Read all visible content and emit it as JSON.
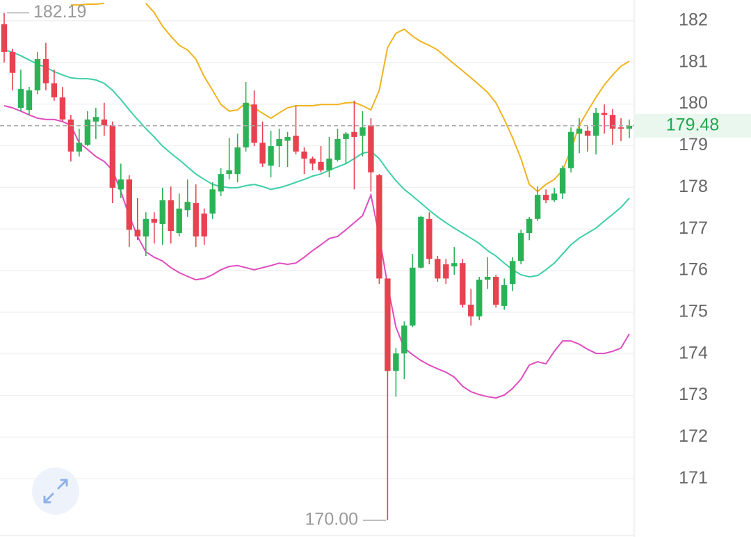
{
  "chart_data": {
    "type": "candlestick",
    "ylim": [
      169.6,
      182.5
    ],
    "yticks": [
      171,
      172,
      173,
      174,
      175,
      176,
      177,
      178,
      179,
      180,
      181,
      182
    ],
    "grid": true,
    "up_color": "#2bb256",
    "down_color": "#e8414f",
    "open": [
      181.92,
      181.25,
      179.91,
      179.86,
      180.33,
      181.08,
      180.5,
      180.16,
      179.63,
      178.86,
      179.02,
      179.58,
      179.63,
      179.49,
      177.95,
      178.19,
      176.98,
      176.82,
      177.24,
      177.12,
      177.69,
      176.9,
      177.45,
      177.62,
      177.37,
      177.37,
      177.9,
      178.32,
      178.32,
      178.96,
      179.99,
      179.07,
      178.52,
      178.99,
      179.12,
      179.24,
      178.86,
      178.69,
      178.61,
      178.41,
      178.66,
      179.16,
      179.33,
      179.24,
      179.49,
      178.29,
      175.81,
      173.59,
      174.01,
      174.68,
      176.07,
      177.24,
      176.28,
      176.15,
      176.1,
      176.18,
      175.18,
      174.9,
      175.78,
      175.85,
      175.15,
      175.68,
      176.23,
      176.9,
      177.24,
      177.82,
      177.69,
      177.85,
      178.46,
      179.29,
      179.36,
      179.24,
      179.79,
      179.74,
      179.44,
      179.41
    ],
    "high": [
      182.19,
      181.33,
      180.83,
      180.41,
      181.25,
      181.47,
      180.83,
      180.41,
      179.74,
      179.41,
      179.83,
      179.91,
      180.03,
      179.58,
      178.57,
      178.29,
      177.74,
      177.4,
      177.4,
      177.99,
      178.02,
      177.85,
      178.19,
      178.07,
      177.49,
      178.12,
      178.46,
      179.19,
      179.29,
      180.53,
      180.33,
      179.58,
      179.36,
      179.41,
      179.33,
      179.96,
      178.96,
      178.74,
      178.99,
      179.21,
      179.41,
      179.33,
      180.08,
      179.83,
      179.66,
      178.32,
      175.81,
      174.14,
      174.78,
      176.4,
      177.32,
      177.4,
      176.35,
      176.28,
      176.57,
      176.28,
      175.56,
      175.85,
      176.32,
      175.9,
      175.81,
      176.32,
      176.98,
      177.29,
      178.02,
      177.95,
      177.99,
      178.52,
      179.44,
      179.66,
      179.49,
      179.91,
      179.99,
      179.88,
      179.66,
      179.63
    ],
    "low": [
      181.0,
      180.33,
      179.83,
      179.74,
      180.24,
      180.33,
      180.08,
      179.58,
      178.62,
      178.74,
      178.99,
      179.16,
      179.24,
      177.62,
      177.74,
      176.57,
      176.73,
      176.35,
      176.65,
      176.62,
      176.65,
      176.82,
      177.29,
      176.57,
      176.62,
      177.24,
      177.79,
      178.19,
      178.12,
      178.86,
      178.99,
      178.49,
      178.24,
      178.49,
      178.49,
      178.79,
      178.32,
      178.41,
      178.36,
      178.24,
      178.62,
      178.57,
      177.95,
      178.74,
      177.9,
      175.68,
      170.0,
      172.97,
      173.39,
      174.64,
      176.05,
      176.15,
      175.73,
      175.68,
      175.9,
      175.11,
      174.68,
      174.81,
      175.56,
      175.11,
      175.06,
      175.51,
      176.15,
      176.73,
      177.19,
      177.62,
      177.65,
      177.72,
      178.36,
      178.82,
      178.86,
      178.79,
      179.29,
      179.02,
      179.11,
      179.19
    ],
    "close": [
      181.25,
      180.75,
      180.36,
      180.33,
      181.08,
      180.5,
      180.16,
      179.63,
      178.86,
      179.07,
      179.63,
      179.69,
      179.49,
      177.99,
      178.19,
      176.98,
      176.82,
      177.24,
      177.15,
      177.69,
      176.95,
      177.49,
      177.65,
      176.82,
      176.82,
      177.95,
      178.32,
      178.41,
      178.96,
      180.03,
      179.07,
      178.57,
      178.99,
      179.16,
      179.21,
      178.86,
      178.69,
      178.57,
      178.41,
      178.69,
      179.16,
      179.29,
      179.21,
      179.44,
      178.36,
      175.81,
      173.59,
      174.01,
      174.68,
      176.07,
      177.29,
      176.28,
      175.81,
      175.81,
      176.18,
      175.18,
      174.9,
      175.78,
      175.85,
      175.18,
      175.65,
      176.23,
      176.9,
      177.24,
      177.82,
      177.69,
      177.85,
      178.46,
      179.33,
      179.41,
      179.24,
      179.79,
      179.74,
      179.41,
      179.41,
      179.48
    ],
    "lines": [
      {
        "color": "#efb31f",
        "values": [
          null,
          null,
          null,
          null,
          null,
          null,
          null,
          null,
          182.38,
          182.38,
          182.4,
          182.4,
          182.42,
          null,
          null,
          null,
          null,
          182.42,
          182.2,
          181.87,
          181.63,
          181.41,
          181.3,
          181.08,
          180.66,
          180.33,
          179.99,
          179.83,
          179.86,
          180.03,
          179.91,
          179.78,
          179.66,
          179.79,
          179.91,
          179.96,
          179.96,
          179.96,
          179.99,
          179.99,
          179.99,
          180.03,
          180.04,
          179.96,
          179.86,
          180.33,
          181.36,
          181.7,
          181.8,
          181.63,
          181.5,
          181.41,
          181.3,
          181.13,
          180.96,
          180.8,
          180.63,
          180.46,
          180.28,
          180.03,
          179.63,
          179.19,
          178.69,
          178.07,
          177.9,
          178.07,
          178.19,
          178.41,
          178.91,
          179.49,
          179.83,
          180.16,
          180.46,
          180.7,
          180.91,
          181.03
        ]
      },
      {
        "color": "#3ccfa6",
        "values": [
          181.3,
          181.25,
          181.16,
          181.06,
          180.96,
          180.88,
          180.78,
          180.7,
          180.63,
          180.61,
          180.61,
          180.58,
          180.5,
          180.33,
          180.11,
          179.86,
          179.63,
          179.41,
          179.21,
          178.99,
          178.82,
          178.66,
          178.49,
          178.32,
          178.19,
          178.07,
          178.02,
          177.99,
          177.99,
          178.04,
          178.07,
          178.02,
          177.95,
          177.99,
          178.05,
          178.12,
          178.19,
          178.27,
          178.32,
          178.41,
          178.49,
          178.57,
          178.69,
          178.82,
          178.86,
          178.69,
          178.41,
          178.16,
          177.95,
          177.79,
          177.62,
          177.45,
          177.29,
          177.15,
          177.02,
          176.9,
          176.78,
          176.65,
          176.48,
          176.35,
          176.18,
          176.02,
          175.9,
          175.85,
          175.88,
          176.02,
          176.18,
          176.4,
          176.62,
          176.78,
          176.9,
          177.02,
          177.19,
          177.35,
          177.52,
          177.74
        ]
      },
      {
        "color": "#e04bbf",
        "values": [
          179.96,
          179.91,
          179.83,
          179.74,
          179.66,
          179.63,
          179.63,
          179.58,
          179.49,
          179.07,
          178.91,
          178.74,
          178.62,
          178.41,
          177.9,
          177.32,
          176.82,
          176.45,
          176.32,
          176.23,
          176.07,
          175.95,
          175.86,
          175.78,
          175.81,
          175.9,
          176.02,
          176.1,
          176.12,
          176.07,
          176.02,
          176.07,
          176.12,
          176.18,
          176.15,
          176.18,
          176.32,
          176.48,
          176.62,
          176.77,
          176.82,
          176.98,
          177.15,
          177.32,
          177.82,
          176.82,
          175.65,
          174.64,
          174.14,
          173.98,
          173.84,
          173.73,
          173.64,
          173.56,
          173.44,
          173.22,
          173.09,
          173.02,
          172.97,
          172.94,
          173.01,
          173.17,
          173.39,
          173.73,
          173.81,
          173.76,
          174.06,
          174.31,
          174.31,
          174.23,
          174.11,
          174.01,
          174.01,
          174.06,
          174.14,
          174.48
        ]
      }
    ],
    "max_label": 182.19,
    "min_label": {
      "value": 170,
      "label": "170.00"
    },
    "last_price": 179.48,
    "last_price_color": "#22a64f"
  }
}
